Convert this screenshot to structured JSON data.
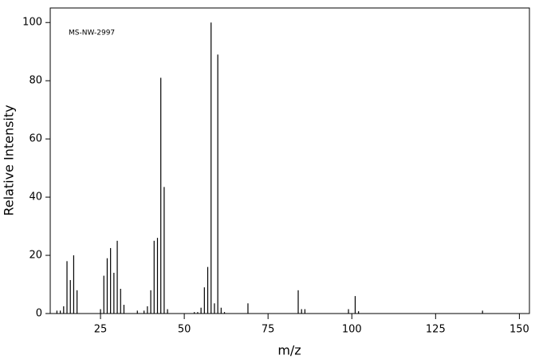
{
  "chart_data": {
    "type": "stick",
    "annotation": "MS-NW-2997",
    "xlabel": "m/z",
    "ylabel": "Relative Intensity",
    "x": [
      12,
      13,
      14,
      15,
      16,
      17,
      18,
      25,
      26,
      27,
      28,
      29,
      30,
      31,
      32,
      36,
      38,
      39,
      40,
      41,
      42,
      43,
      44,
      45,
      53,
      54,
      55,
      56,
      57,
      58,
      59,
      60,
      61,
      62,
      69,
      84,
      85,
      86,
      99,
      101,
      102,
      139
    ],
    "values": [
      1,
      1,
      2.5,
      18,
      11.5,
      20,
      8,
      1.5,
      13,
      19,
      22.5,
      14,
      25,
      8.5,
      3,
      1,
      1,
      2.5,
      8,
      25,
      26,
      81,
      43.5,
      1.5,
      0.5,
      0.5,
      2,
      9,
      16,
      100,
      3.5,
      89,
      2,
      0.5,
      3.5,
      8,
      1.5,
      1.5,
      1.5,
      6,
      0.8,
      1
    ],
    "color": "#000000",
    "xlim": [
      10,
      153
    ],
    "xticks": [
      25,
      50,
      75,
      100,
      125,
      150
    ],
    "ylim": [
      0,
      105
    ],
    "yticks": [
      0,
      20,
      40,
      60,
      80,
      100
    ]
  }
}
